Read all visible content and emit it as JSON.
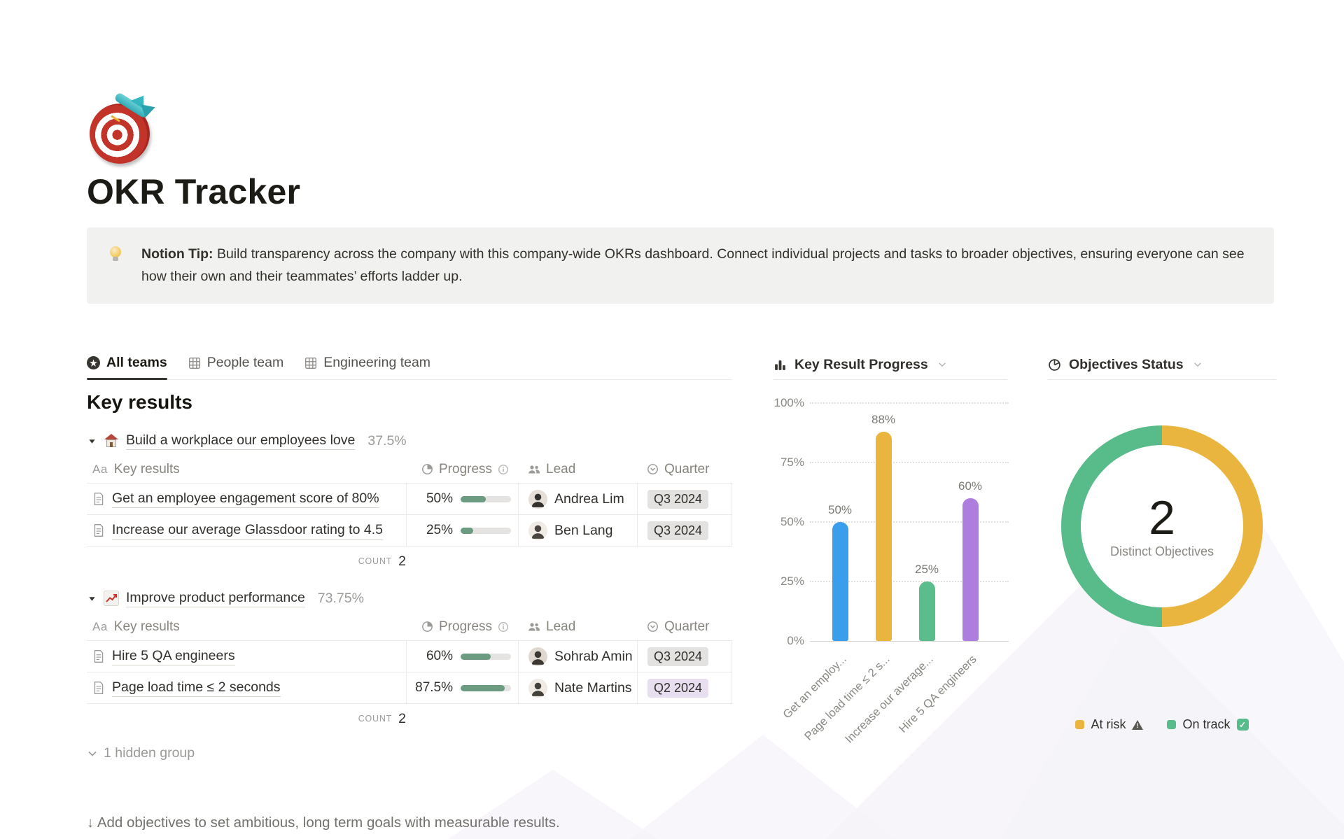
{
  "page": {
    "icon_name": "dartboard-emoji",
    "title": "OKR Tracker"
  },
  "callout": {
    "icon_name": "lightbulb-emoji",
    "label": "Notion Tip:",
    "text": " Build transparency across the company with this company-wide OKRs dashboard. Connect individual projects and tasks to broader objectives, ensuring everyone can see how their own and their teammates’ efforts ladder up."
  },
  "tabs": [
    {
      "label": "All teams",
      "icon": "star-circle-icon",
      "active": true
    },
    {
      "label": "People team",
      "icon": "table-grid-icon",
      "active": false
    },
    {
      "label": "Engineering team",
      "icon": "table-grid-icon",
      "active": false
    }
  ],
  "table_columns": {
    "name_prefix": "Aa",
    "name": "Key results",
    "progress": "Progress",
    "lead": "Lead",
    "quarter": "Quarter"
  },
  "key_results": {
    "heading": "Key results",
    "groups": [
      {
        "icon_name": "house-emoji",
        "title": "Build a workplace our employees love",
        "percent": "37.5%",
        "count_label": "COUNT",
        "count": "2",
        "rows": [
          {
            "name": "Get an employee engagement score of 80%",
            "progress": "50%",
            "progress_value": 50,
            "lead": "Andrea Lim",
            "quarter": "Q3 2024",
            "quarter_bg": "#E3E2E0"
          },
          {
            "name": "Increase our average Glassdoor rating to 4.5",
            "progress": "25%",
            "progress_value": 25,
            "lead": "Ben Lang",
            "quarter": "Q3 2024",
            "quarter_bg": "#E3E2E0"
          }
        ]
      },
      {
        "icon_name": "chart-increasing-emoji",
        "title": "Improve product performance",
        "percent": "73.75%",
        "count_label": "COUNT",
        "count": "2",
        "rows": [
          {
            "name": "Hire 5 QA engineers",
            "progress": "60%",
            "progress_value": 60,
            "lead": "Sohrab Amin",
            "quarter": "Q3 2024",
            "quarter_bg": "#E3E2E0"
          },
          {
            "name": "Page load time ≤ 2 seconds",
            "progress": "87.5%",
            "progress_value": 87.5,
            "lead": "Nate Martins",
            "quarter": "Q2 2024",
            "quarter_bg": "#E7DFEF"
          }
        ]
      }
    ],
    "hidden_group": "1 hidden group"
  },
  "footer": {
    "prompt": "↓ Add objectives to set ambitious, long term goals with measurable results."
  },
  "colors": {
    "progress_fill": "#6B9B80",
    "badge_gray": "#E3E2E0",
    "badge_purple": "#E7DFEF",
    "divider": "#E9E9E7"
  },
  "chart_data": [
    {
      "type": "bar",
      "title": "Key Result Progress",
      "categories": [
        "Get an employ...",
        "Page load time ≤ 2 s...",
        "Increase our average...",
        "Hire 5 QA engineers"
      ],
      "values": [
        50,
        88,
        25,
        60
      ],
      "value_labels": [
        "50%",
        "88%",
        "25%",
        "60%"
      ],
      "colors": [
        "#3B9EEC",
        "#EAB53E",
        "#5BBD8B",
        "#AE7EDE"
      ],
      "yticks": [
        {
          "label": "0%",
          "value": 0
        },
        {
          "label": "25%",
          "value": 25
        },
        {
          "label": "50%",
          "value": 50
        },
        {
          "label": "75%",
          "value": 75
        },
        {
          "label": "100%",
          "value": 100
        }
      ],
      "ylim": [
        0,
        100
      ],
      "grid": "dotted-horizontal",
      "xlabel": "",
      "ylabel": ""
    },
    {
      "type": "pie",
      "donut": true,
      "title": "Objectives Status",
      "center_value": "2",
      "center_label": "Distinct Objectives",
      "slices": [
        {
          "label": "At risk",
          "value": 1,
          "color": "#EAB53E",
          "legend_icon": "warning-triangle-icon"
        },
        {
          "label": "On track",
          "value": 1,
          "color": "#57BB8A",
          "legend_icon": "check-box-icon"
        }
      ],
      "legend_position": "bottom"
    }
  ]
}
